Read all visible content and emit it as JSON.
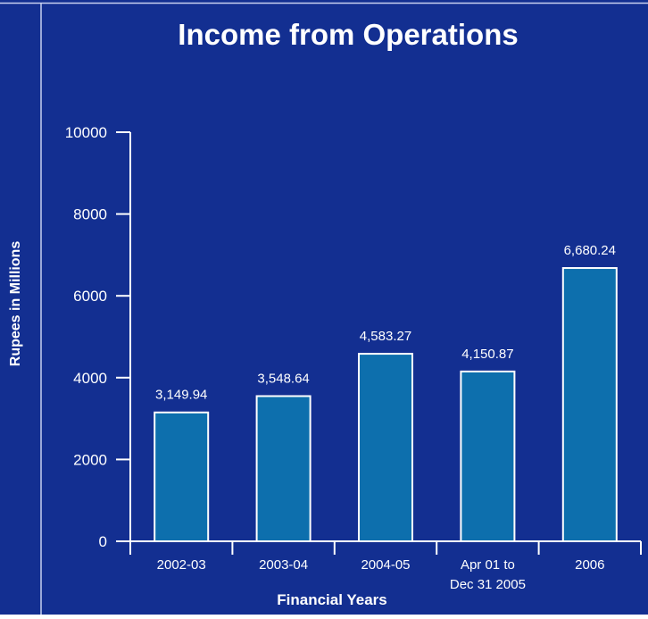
{
  "chart_data": {
    "type": "bar",
    "title": "Income from Operations",
    "xlabel": "Financial Years",
    "ylabel": "Rupees in Millions",
    "categories": [
      [
        "2002-03"
      ],
      [
        "2003-04"
      ],
      [
        "2004-05"
      ],
      [
        "Apr 01 to",
        "Dec 31 2005"
      ],
      [
        "2006"
      ]
    ],
    "values": [
      3149.94,
      3548.64,
      4583.27,
      4150.87,
      6680.24
    ],
    "value_labels": [
      "3,149.94",
      "3,548.64",
      "4,583.27",
      "4,150.87",
      "6,680.24"
    ],
    "yticks": [
      "0",
      "2000",
      "4000",
      "6000",
      "8000",
      "10000"
    ],
    "ylim": [
      0,
      10000
    ],
    "grid": false,
    "legend": "none"
  },
  "colors": {
    "background": "#132f91",
    "bar_fill": "#0d6fad",
    "bar_stroke": "#ffffff",
    "text": "#ffffff"
  }
}
